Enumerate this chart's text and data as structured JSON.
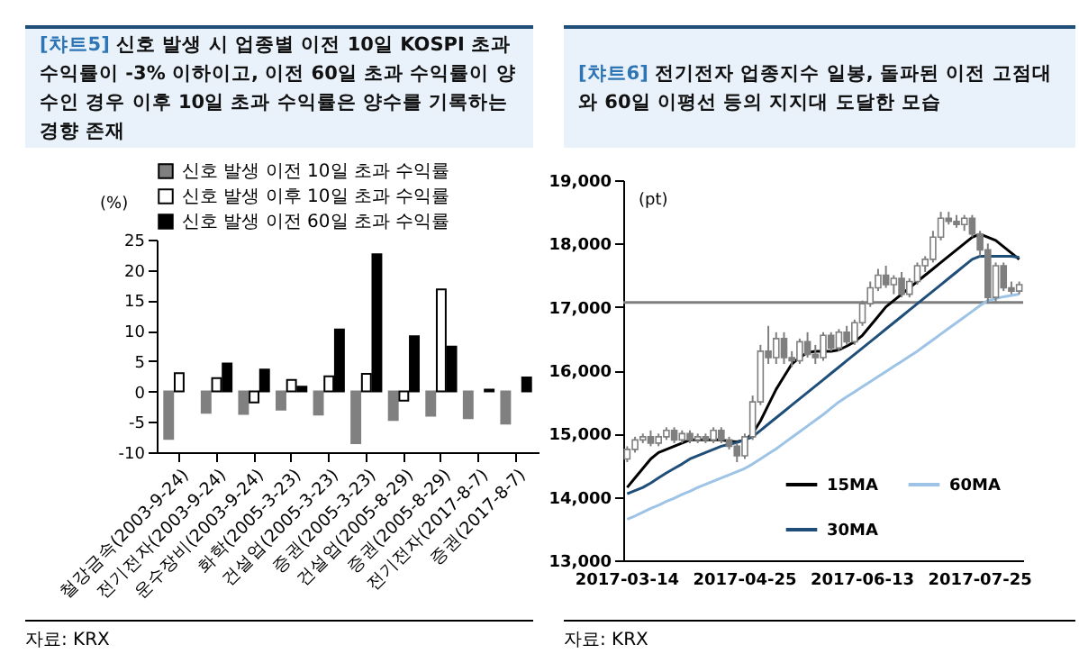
{
  "chart_data": [
    {
      "type": "bar",
      "title": "[챠트5] 신호 발생 시 업종별 이전 10일 KOSPI 초과 수익률이 -3% 이하이고, 이전 60일 초과 수익률이 양수인 경우 이후 10일 초과 수익률은 양수를 기록하는 경향 존재",
      "ylabel": "(%)",
      "annotations": [
        "자료: KRX"
      ],
      "categories": [
        "철강금속(2003-9-24)",
        "전기전자(2003-9-24)",
        "운수장비(2003-9-24)",
        "화학(2005-3-23)",
        "건설업(2005-3-23)",
        "증권(2005-3-23)",
        "건설업(2005-8-29)",
        "증권(2005-8-29)",
        "전기전자(2017-8-7)",
        "증권(2017-8-7)"
      ],
      "series": [
        {
          "name": "신호 발생 이전 10일 초과 수익률",
          "color": "#808080",
          "values": [
            -7.8,
            -3.5,
            -3.7,
            -3.0,
            -3.8,
            -8.5,
            -4.7,
            -4.0,
            -4.4,
            -5.3
          ]
        },
        {
          "name": "신호 발생 이후 10일 초과 수익률",
          "color": "#ffffff",
          "values": [
            3.0,
            2.2,
            -1.8,
            1.9,
            2.5,
            2.9,
            -1.5,
            16.8,
            null,
            null
          ]
        },
        {
          "name": "신호 발생 이전 60일 초과 수익률",
          "color": "#000000",
          "values": [
            null,
            4.6,
            3.6,
            0.8,
            10.2,
            22.6,
            9.1,
            7.4,
            0.3,
            2.3
          ]
        }
      ],
      "ylim": [
        -10,
        25
      ],
      "yticks": [
        -10,
        -5,
        0,
        5,
        10,
        15,
        20,
        25
      ],
      "legend": "top"
    },
    {
      "type": "candlestick",
      "title": "[챠트6] 전기전자 업종지수 일봉, 돌파된 이전 고점대와 60일 이평선 등의 지지대 도달한 모습",
      "ylabel": "(pt)",
      "annotations": [
        "자료: KRX"
      ],
      "categories": [
        "2017-03-14",
        null,
        null,
        null,
        null,
        null,
        null,
        null,
        null,
        null,
        null,
        null,
        null,
        null,
        null,
        "2017-04-25",
        null,
        null,
        null,
        null,
        null,
        null,
        null,
        null,
        null,
        null,
        null,
        null,
        null,
        null,
        "2017-06-13",
        null,
        null,
        null,
        null,
        null,
        null,
        null,
        null,
        null,
        null,
        null,
        null,
        null,
        null,
        "2017-07-25",
        null,
        null,
        null,
        null,
        null
      ],
      "series": [
        {
          "type": "candlestick",
          "color": "#7f7f7f",
          "ohlc": [
            [
              14600,
              14800,
              14550,
              14750
            ],
            [
              14750,
              14950,
              14700,
              14900
            ],
            [
              14900,
              15000,
              14850,
              14950
            ],
            [
              14950,
              15050,
              14800,
              14850
            ],
            [
              14850,
              15000,
              14800,
              14950
            ],
            [
              14950,
              15100,
              14900,
              15050
            ],
            [
              15050,
              15100,
              14850,
              14900
            ],
            [
              14900,
              15050,
              14850,
              15000
            ],
            [
              15000,
              15050,
              14850,
              14900
            ],
            [
              14900,
              15000,
              14850,
              14950
            ],
            [
              14950,
              15000,
              14850,
              14900
            ],
            [
              14900,
              15100,
              14850,
              15050
            ],
            [
              15050,
              15100,
              14850,
              14900
            ],
            [
              14900,
              14950,
              14750,
              14800
            ],
            [
              14800,
              14850,
              14550,
              14650
            ],
            [
              14650,
              15000,
              14600,
              14950
            ],
            [
              14950,
              15600,
              14900,
              15500
            ],
            [
              15500,
              16400,
              15450,
              16300
            ],
            [
              16300,
              16700,
              16100,
              16200
            ],
            [
              16200,
              16600,
              16100,
              16500
            ],
            [
              16500,
              16600,
              16100,
              16200
            ],
            [
              16200,
              16300,
              16050,
              16150
            ],
            [
              16150,
              16500,
              16100,
              16450
            ],
            [
              16450,
              16600,
              16200,
              16250
            ],
            [
              16250,
              16400,
              16100,
              16200
            ],
            [
              16200,
              16600,
              16150,
              16550
            ],
            [
              16550,
              16600,
              16300,
              16350
            ],
            [
              16350,
              16650,
              16300,
              16600
            ],
            [
              16600,
              16700,
              16400,
              16450
            ],
            [
              16450,
              16800,
              16400,
              16750
            ],
            [
              16750,
              17100,
              16700,
              17050
            ],
            [
              17050,
              17400,
              17000,
              17300
            ],
            [
              17300,
              17600,
              17250,
              17500
            ],
            [
              17500,
              17650,
              17300,
              17350
            ],
            [
              17350,
              17500,
              17200,
              17450
            ],
            [
              17450,
              17550,
              17150,
              17200
            ],
            [
              17200,
              17450,
              17150,
              17400
            ],
            [
              17400,
              17700,
              17350,
              17650
            ],
            [
              17650,
              17800,
              17550,
              17750
            ],
            [
              17750,
              18200,
              17700,
              18100
            ],
            [
              18100,
              18500,
              18050,
              18400
            ],
            [
              18400,
              18500,
              18300,
              18350
            ],
            [
              18350,
              18450,
              18250,
              18300
            ],
            [
              18300,
              18450,
              18200,
              18400
            ],
            [
              18400,
              18450,
              18100,
              18150
            ],
            [
              18150,
              18200,
              17800,
              17900
            ],
            [
              17900,
              18000,
              17050,
              17150
            ],
            [
              17150,
              17700,
              17050,
              17650
            ],
            [
              17650,
              17700,
              17250,
              17300
            ],
            [
              17300,
              17400,
              17200,
              17250
            ],
            [
              17250,
              17400,
              17200,
              17350
            ]
          ]
        },
        {
          "name": "15MA",
          "type": "line",
          "color": "#000000",
          "values": [
            14150,
            14300,
            14450,
            14600,
            14700,
            14750,
            14800,
            14850,
            14900,
            14900,
            14900,
            14900,
            14900,
            14880,
            14870,
            14900,
            15000,
            15200,
            15450,
            15700,
            15900,
            16100,
            16200,
            16280,
            16300,
            16300,
            16300,
            16320,
            16380,
            16450,
            16550,
            16700,
            16850,
            17000,
            17100,
            17200,
            17300,
            17400,
            17500,
            17600,
            17700,
            17800,
            17900,
            18000,
            18100,
            18150,
            18100,
            18050,
            17950,
            17850,
            17750
          ]
        },
        {
          "name": "30MA",
          "type": "line",
          "color": "#1f4e79",
          "values": [
            14050,
            14100,
            14150,
            14220,
            14300,
            14380,
            14450,
            14520,
            14600,
            14650,
            14700,
            14750,
            14800,
            14830,
            14860,
            14900,
            14950,
            15050,
            15150,
            15250,
            15350,
            15450,
            15550,
            15650,
            15750,
            15850,
            15950,
            16050,
            16150,
            16250,
            16350,
            16450,
            16550,
            16650,
            16750,
            16850,
            16950,
            17050,
            17150,
            17250,
            17350,
            17450,
            17550,
            17650,
            17750,
            17800,
            17800,
            17800,
            17800,
            17800,
            17780
          ]
        },
        {
          "name": "60MA",
          "type": "line",
          "color": "#9dc3e6",
          "values": [
            13650,
            13700,
            13760,
            13820,
            13870,
            13930,
            13980,
            14040,
            14090,
            14150,
            14200,
            14250,
            14300,
            14350,
            14400,
            14450,
            14520,
            14600,
            14680,
            14760,
            14850,
            14940,
            15030,
            15120,
            15210,
            15300,
            15400,
            15500,
            15580,
            15660,
            15740,
            15820,
            15900,
            15980,
            16060,
            16140,
            16220,
            16300,
            16390,
            16480,
            16570,
            16660,
            16750,
            16840,
            16930,
            17020,
            17100,
            17130,
            17160,
            17180,
            17200
          ]
        }
      ],
      "ylim": [
        13000,
        19000
      ],
      "yticks": [
        {
          "value": 13000,
          "label": "13,000"
        },
        {
          "value": 14000,
          "label": "14,000"
        },
        {
          "value": 15000,
          "label": "15,000"
        },
        {
          "value": 16000,
          "label": "16,000"
        },
        {
          "value": 17000,
          "label": "17,000"
        },
        {
          "value": 18000,
          "label": "18,000"
        },
        {
          "value": 19000,
          "label": "19,000"
        }
      ],
      "ref_lines": [
        {
          "axis": "y",
          "value": 17070,
          "color": "#7f7f7f"
        }
      ],
      "legend": "bottom right"
    }
  ]
}
